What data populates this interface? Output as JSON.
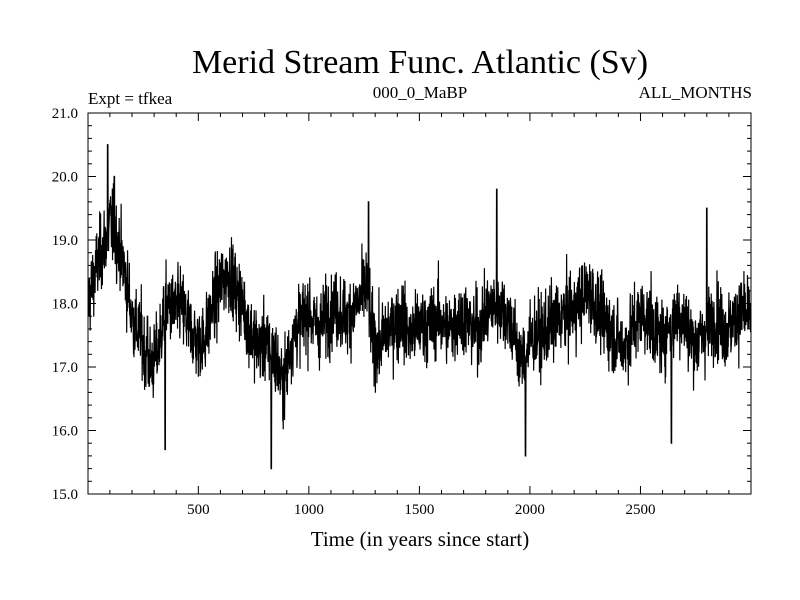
{
  "chart_data": {
    "type": "line",
    "title": "Merid Stream Func. Atlantic (Sv)",
    "subtitle_left": "Expt = tfkea",
    "subtitle_center": "000_0_MaBP",
    "subtitle_right": "ALL_MONTHS",
    "xlabel": "Time (in years since start)",
    "ylabel": "",
    "xlim": [
      1,
      3000
    ],
    "ylim": [
      15.0,
      21.0
    ],
    "x_ticks": [
      500,
      1000,
      1500,
      2000,
      2500
    ],
    "x_tick_labels": [
      "500",
      "1000",
      "1500",
      "2000",
      "2500"
    ],
    "y_ticks": [
      15.0,
      16.0,
      17.0,
      18.0,
      19.0,
      20.0,
      21.0
    ],
    "y_tick_labels": [
      "15.0",
      "16.0",
      "17.0",
      "18.0",
      "19.0",
      "20.0",
      "21.0"
    ],
    "grid": false,
    "line_color": "#000000",
    "series": [
      {
        "x_start": 1,
        "x_step": 20,
        "values": [
          18.0,
          18.3,
          18.6,
          18.8,
          19.0,
          19.3,
          19.1,
          18.9,
          18.6,
          18.2,
          17.8,
          17.6,
          17.5,
          17.2,
          17.0,
          17.1,
          17.3,
          17.8,
          18.0,
          17.9,
          17.9,
          18.0,
          17.8,
          17.6,
          17.5,
          17.4,
          17.4,
          17.6,
          17.9,
          18.1,
          18.3,
          18.4,
          18.5,
          18.3,
          18.1,
          18.0,
          17.7,
          17.5,
          17.4,
          17.3,
          17.4,
          17.3,
          17.2,
          17.0,
          16.7,
          17.0,
          17.4,
          17.6,
          17.7,
          17.8,
          17.9,
          17.7,
          17.6,
          17.7,
          17.8,
          17.9,
          17.9,
          17.9,
          17.8,
          17.8,
          17.9,
          18.0,
          18.1,
          18.3,
          17.6,
          17.4,
          17.3,
          17.5,
          17.6,
          17.7,
          17.7,
          17.8,
          17.6,
          17.5,
          17.6,
          17.6,
          17.7,
          17.6,
          17.7,
          17.8,
          17.7,
          17.6,
          17.6,
          17.7,
          17.8,
          17.8,
          17.7,
          17.6,
          17.6,
          17.7,
          17.8,
          17.9,
          18.0,
          18.0,
          17.9,
          17.8,
          17.6,
          17.3,
          17.1,
          17.2,
          17.4,
          17.5,
          17.5,
          17.5,
          17.6,
          17.7,
          17.7,
          17.8,
          17.8,
          17.9,
          17.9,
          18.0,
          18.1,
          18.2,
          18.1,
          17.9,
          17.8,
          17.7,
          17.6,
          17.5,
          17.4,
          17.3,
          17.4,
          17.6,
          17.7,
          17.8,
          17.8,
          17.7,
          17.6,
          17.5,
          17.5,
          17.6,
          17.7,
          17.8,
          17.8,
          17.7,
          17.5,
          17.4,
          17.4,
          17.5,
          17.6,
          17.7,
          17.8,
          17.7,
          17.6,
          17.6,
          17.7,
          17.8,
          17.9,
          17.8
        ]
      }
    ],
    "extremes": [
      {
        "x": 90,
        "y": 20.5
      },
      {
        "x": 120,
        "y": 20.0
      },
      {
        "x": 270,
        "y": 17.8
      },
      {
        "x": 350,
        "y": 15.7
      },
      {
        "x": 830,
        "y": 15.4
      },
      {
        "x": 1270,
        "y": 19.6
      },
      {
        "x": 1850,
        "y": 19.8
      },
      {
        "x": 1980,
        "y": 15.6
      },
      {
        "x": 2640,
        "y": 15.8
      },
      {
        "x": 2800,
        "y": 19.5
      }
    ]
  }
}
